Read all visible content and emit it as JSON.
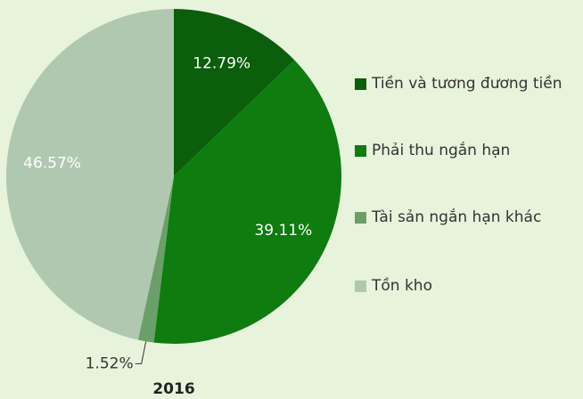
{
  "chart_data": {
    "type": "pie",
    "title": "2016",
    "categories": [
      "Tiền và tương đương tiền",
      "Phải thu ngắn hạn",
      "Tài sản ngắn hạn khác",
      "Tồn kho"
    ],
    "values": [
      12.79,
      39.11,
      1.52,
      46.57
    ],
    "value_labels": [
      "12.79%",
      "39.11%",
      "1.52%",
      "46.57%"
    ],
    "colors": [
      "#0b5e0b",
      "#0e7c0e",
      "#6a9f6a",
      "#b0c8b0"
    ],
    "legend": "right"
  }
}
